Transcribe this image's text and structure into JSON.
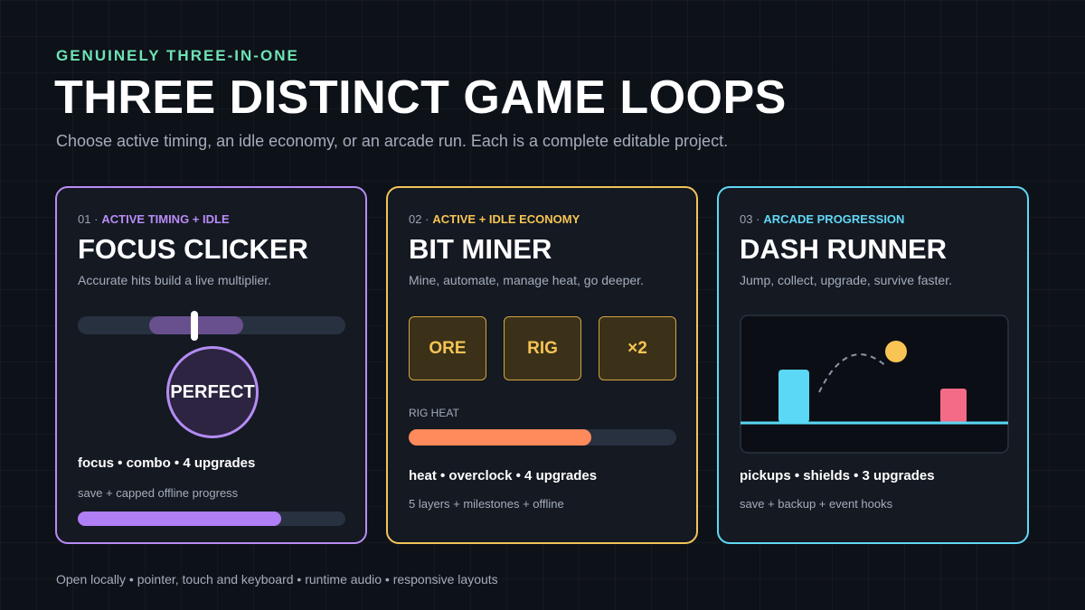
{
  "header": {
    "eyebrow": "GENUINELY THREE-IN-ONE",
    "title": "THREE DISTINCT GAME LOOPS",
    "subtitle": "Choose active timing, an idle economy, or an arcade run. Each is a complete editable project."
  },
  "cards": [
    {
      "prefix": "01 ·",
      "tag": "ACTIVE TIMING + IDLE",
      "title": "FOCUS CLICKER",
      "description": "Accurate hits build a live multiplier.",
      "badge": "PERFECT",
      "features": "focus • combo • 4 upgrades",
      "note": "save + capped offline progress"
    },
    {
      "prefix": "02 ·",
      "tag": "ACTIVE + IDLE ECONOMY",
      "title": "BIT MINER",
      "description": "Mine, automate, manage heat, go deeper.",
      "tiles": [
        "ORE",
        "RIG",
        "×2"
      ],
      "meter_label": "RIG HEAT",
      "features": "heat • overclock • 4 upgrades",
      "note": "5 layers + milestones + offline"
    },
    {
      "prefix": "03 ·",
      "tag": "ARCADE PROGRESSION",
      "title": "DASH RUNNER",
      "description": "Jump, collect, upgrade, survive faster.",
      "features": "pickups • shields • 3 upgrades",
      "note": "save + backup + event hooks"
    }
  ],
  "footer": "Open locally • pointer, touch and keyboard • runtime audio • responsive layouts"
}
